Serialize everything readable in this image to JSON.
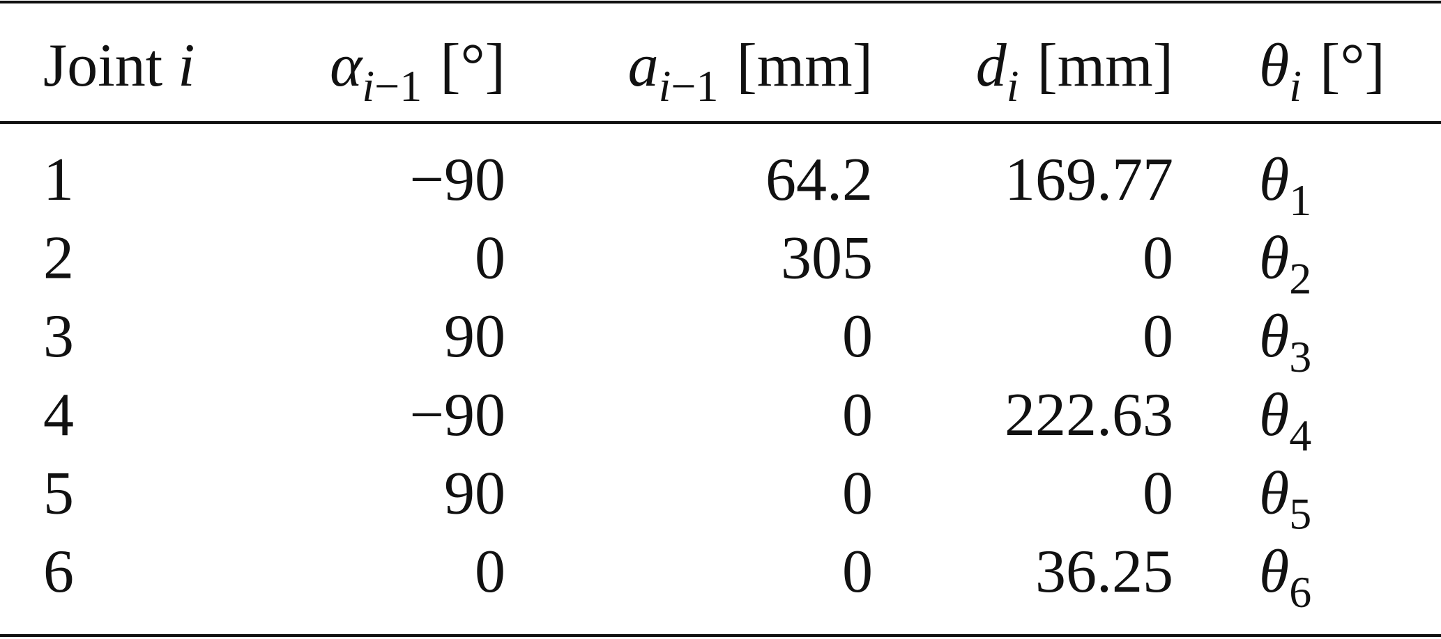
{
  "table": {
    "header": [
      {
        "text": "Joint",
        "var": "i"
      },
      {
        "symbol": "α",
        "sub": "i",
        "sub2": "−1",
        "unit": "[°]"
      },
      {
        "symbol": "a",
        "sub": "i",
        "sub2": "−1",
        "unit": "[mm]"
      },
      {
        "symbol": "d",
        "sub": "i",
        "unit": "[mm]"
      },
      {
        "symbol": "θ",
        "sub": "i",
        "unit": "[°]"
      }
    ],
    "rows": [
      [
        "1",
        "−90",
        "64.2",
        "169.77",
        {
          "symbol": "θ",
          "sub2": "1"
        }
      ],
      [
        "2",
        "0",
        "305",
        "0",
        {
          "symbol": "θ",
          "sub2": "2"
        }
      ],
      [
        "3",
        "90",
        "0",
        "0",
        {
          "symbol": "θ",
          "sub2": "3"
        }
      ],
      [
        "4",
        "−90",
        "0",
        "222.63",
        {
          "symbol": "θ",
          "sub2": "4"
        }
      ],
      [
        "5",
        "90",
        "0",
        "0",
        {
          "symbol": "θ",
          "sub2": "5"
        }
      ],
      [
        "6",
        "0",
        "0",
        "36.25",
        {
          "symbol": "θ",
          "sub2": "6"
        }
      ]
    ]
  }
}
